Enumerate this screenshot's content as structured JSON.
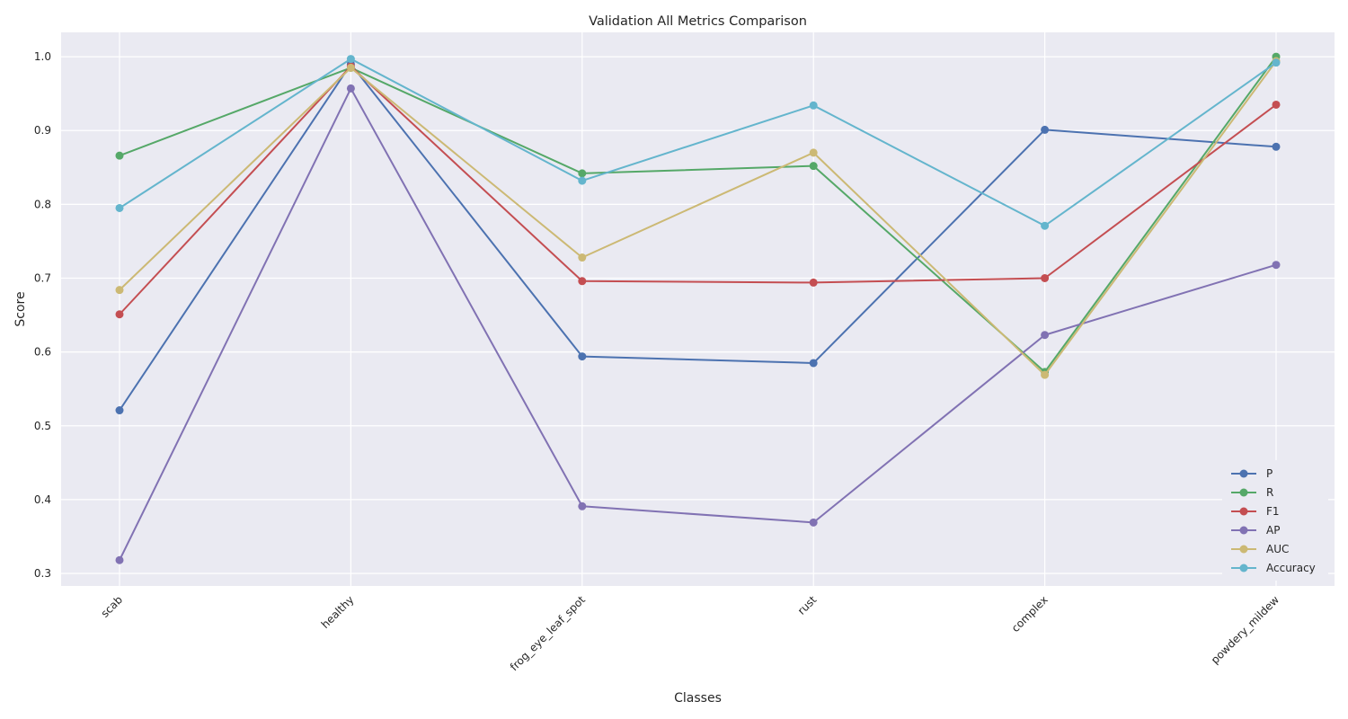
{
  "chart_data": {
    "type": "line",
    "title": "Validation All Metrics Comparison",
    "xlabel": "Classes",
    "ylabel": "Score",
    "categories": [
      "scab",
      "healthy",
      "frog_eye_leaf_spot",
      "rust",
      "complex",
      "powdery_mildew"
    ],
    "ylim": [
      0.283,
      1.033
    ],
    "yticks": [
      0.3,
      0.4,
      0.5,
      0.6,
      0.7,
      0.8,
      0.9,
      1.0
    ],
    "ytick_labels": [
      "0.3",
      "0.4",
      "0.5",
      "0.6",
      "0.7",
      "0.8",
      "0.9",
      "1.0"
    ],
    "grid": true,
    "legend_position": "bottom-right",
    "x_tick_rotation": "45 degrees",
    "series": [
      {
        "name": "P",
        "color": "#4c72b0",
        "values": [
          0.521,
          0.99,
          0.594,
          0.585,
          0.901,
          0.878
        ]
      },
      {
        "name": "R",
        "color": "#55a868",
        "values": [
          0.866,
          0.985,
          0.842,
          0.852,
          0.573,
          1.0
        ]
      },
      {
        "name": "F1",
        "color": "#c44e52",
        "values": [
          0.651,
          0.987,
          0.696,
          0.694,
          0.7,
          0.935
        ]
      },
      {
        "name": "AP",
        "color": "#8172b3",
        "values": [
          0.318,
          0.957,
          0.391,
          0.369,
          0.623,
          0.718
        ]
      },
      {
        "name": "AUC",
        "color": "#ccb974",
        "values": [
          0.684,
          0.985,
          0.728,
          0.87,
          0.569,
          0.994
        ]
      },
      {
        "name": "Accuracy",
        "color": "#64b5cd",
        "values": [
          0.795,
          0.997,
          0.832,
          0.934,
          0.771,
          0.992
        ]
      }
    ]
  }
}
